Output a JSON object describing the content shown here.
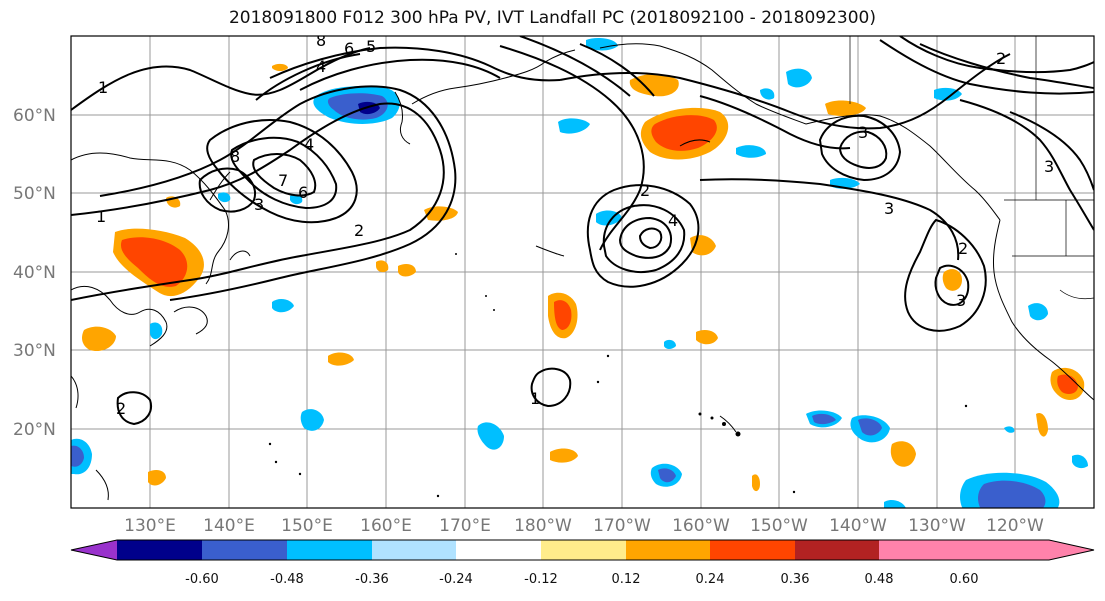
{
  "title": "2018091800 F012 300 hPa PV, IVT Landfall PC (2018092100 - 2018092300)",
  "lat_labels": [
    "60°N",
    "50°N",
    "40°N",
    "30°N",
    "20°N"
  ],
  "lon_labels": [
    "130°E",
    "140°E",
    "150°E",
    "160°E",
    "170°E",
    "180°W",
    "170°W",
    "160°W",
    "150°W",
    "140°W",
    "130°W",
    "120°W"
  ],
  "colorbar": {
    "tick_labels": [
      "-0.60",
      "-0.48",
      "-0.36",
      "-0.24",
      "-0.12",
      "0.12",
      "0.24",
      "0.36",
      "0.48",
      "0.60"
    ],
    "colors": [
      "#9932cc",
      "#00008b",
      "#3a5fcd",
      "#00bfff",
      "#b0e2ff",
      "#ffffff",
      "#ffec8b",
      "#ffa500",
      "#ff4500",
      "#b22222",
      "#ff82ab"
    ]
  },
  "contour_labels": [
    "1",
    "1",
    "1",
    "2",
    "2",
    "2",
    "2",
    "2",
    "3",
    "3",
    "3",
    "3",
    "3",
    "4",
    "4",
    "4",
    "5",
    "6",
    "6",
    "7",
    "8",
    "8"
  ]
}
